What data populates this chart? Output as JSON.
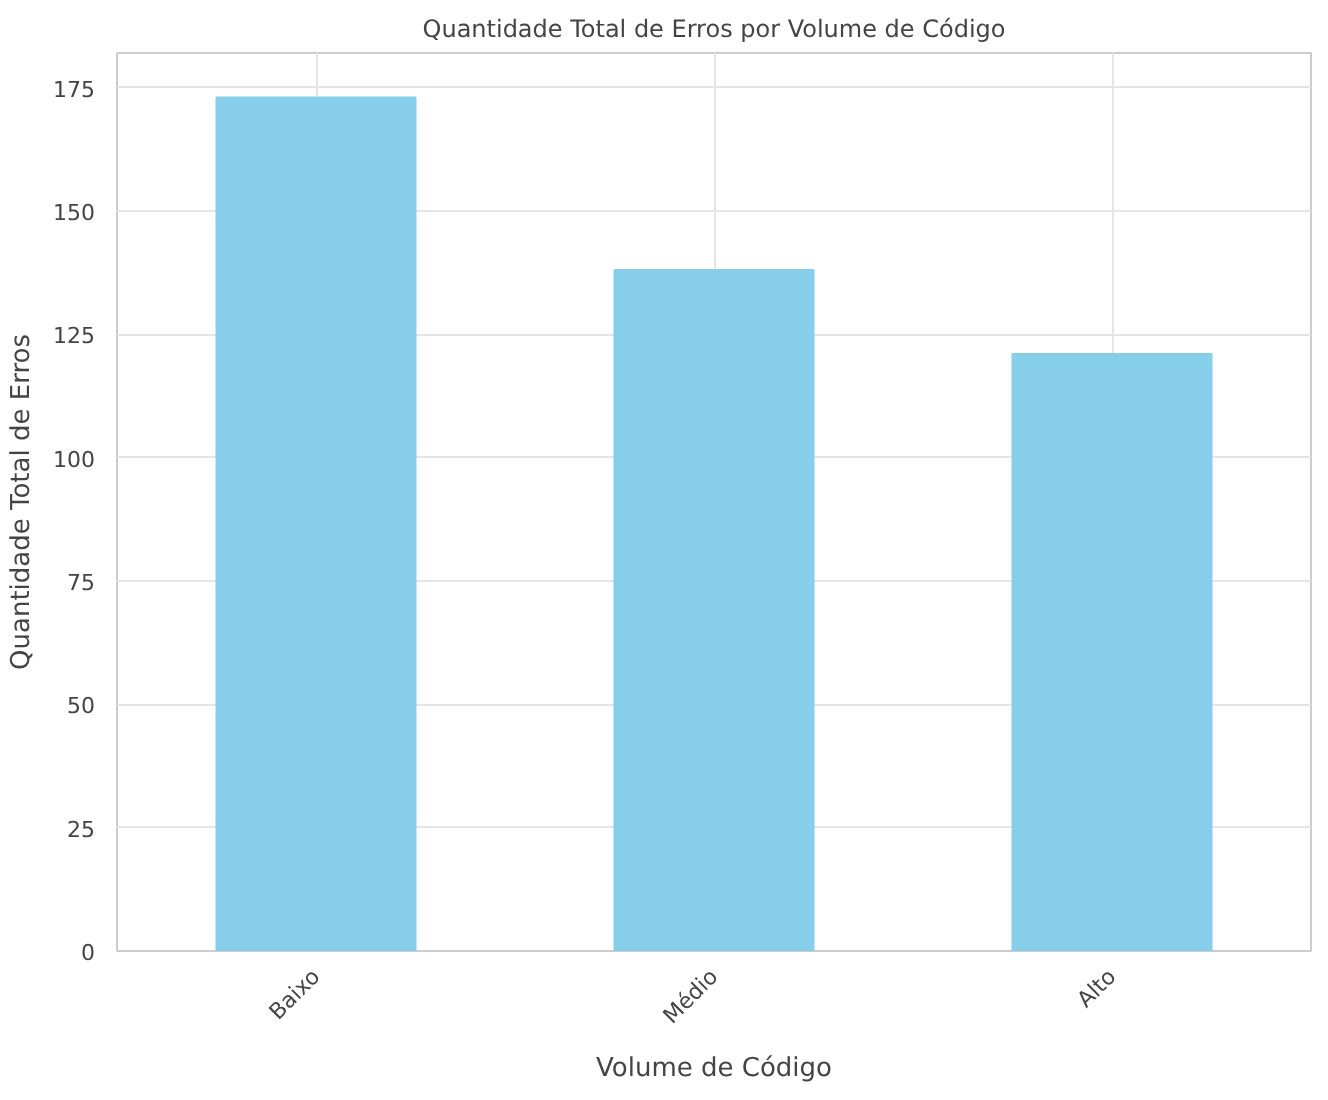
{
  "chart_data": {
    "type": "bar",
    "title": "Quantidade Total de Erros por Volume de Código",
    "xlabel": "Volume de Código",
    "ylabel": "Quantidade Total de Erros",
    "categories": [
      "Baixo",
      "Médio",
      "Alto"
    ],
    "values": [
      173,
      138,
      121
    ],
    "color": "#87ceeb",
    "ylim": [
      0,
      182
    ],
    "yticks": [
      0,
      25,
      50,
      75,
      100,
      125,
      150,
      175
    ],
    "grid": true
  }
}
